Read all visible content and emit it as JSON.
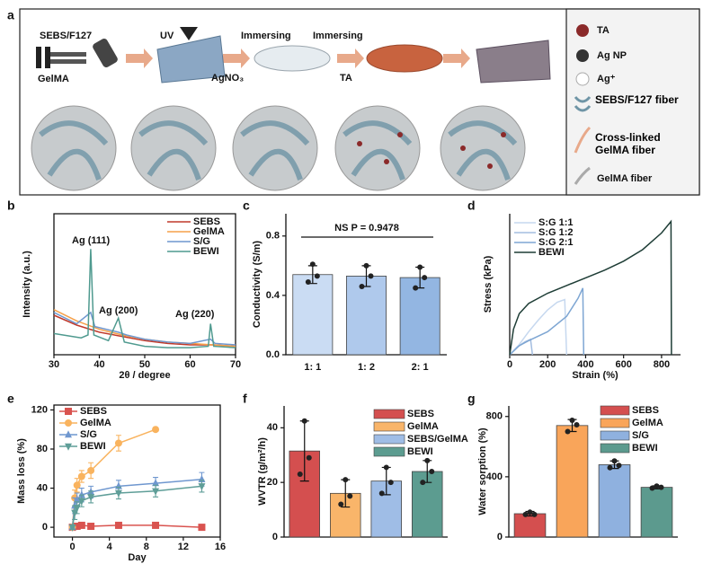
{
  "schematic": {
    "label": "a",
    "steps": [
      "SEBS/F127",
      "GelMA",
      "UV",
      "Immersing",
      "AgNO₃",
      "Immersing",
      "TA"
    ],
    "legend": [
      "TA",
      "Ag NP",
      "Ag⁺",
      "SEBS/F127 fiber",
      "Cross-linked GelMA fiber",
      "GelMA fiber"
    ]
  },
  "chart_data": [
    {
      "type": "line",
      "label": "b",
      "xlabel": "2θ / degree",
      "ylabel": "Intensity (a.u.)",
      "annotations": [
        "Ag (111)",
        "Ag (200)",
        "Ag (220)"
      ],
      "xlim": [
        30,
        70
      ],
      "xticks": [
        30,
        40,
        50,
        60,
        70
      ],
      "ylim": [
        0,
        100
      ],
      "series": [
        {
          "name": "SEBS",
          "color": "#c0392b",
          "x": [
            30,
            35,
            40,
            45,
            50,
            55,
            60,
            65,
            70
          ],
          "values": [
            28,
            21,
            16,
            13,
            10,
            8,
            7,
            7,
            6
          ]
        },
        {
          "name": "GelMA",
          "color": "#f5a04a",
          "x": [
            30,
            35,
            40,
            45,
            50,
            55,
            60,
            65,
            70
          ],
          "values": [
            32,
            24,
            18,
            14,
            11,
            9,
            8,
            7,
            6
          ]
        },
        {
          "name": "S/G",
          "color": "#6f97cf",
          "x": [
            30,
            35,
            38.1,
            39,
            44.2,
            46,
            50,
            55,
            60,
            64.5,
            65.5,
            70
          ],
          "values": [
            30,
            22,
            30,
            20,
            16,
            14,
            11,
            9,
            8,
            11,
            8,
            7
          ]
        },
        {
          "name": "BEWI",
          "color": "#4f9a8f",
          "x": [
            30,
            34,
            36,
            37.5,
            38.1,
            38.8,
            42,
            44.2,
            45.5,
            50,
            55,
            60,
            64,
            64.5,
            65.2,
            70
          ],
          "values": [
            15,
            13,
            12,
            14,
            75,
            14,
            10,
            26,
            9,
            6,
            5,
            5,
            6,
            22,
            6,
            5
          ]
        }
      ]
    },
    {
      "type": "bar",
      "label": "c",
      "ylabel": "Conductivity (S/m)",
      "annotation": "NS P = 0.9478",
      "categories": [
        "1: 1",
        "1: 2",
        "2: 1"
      ],
      "values": [
        0.54,
        0.53,
        0.52
      ],
      "errors": [
        0.06,
        0.07,
        0.07
      ],
      "points": [
        [
          0.49,
          0.61,
          0.53
        ],
        [
          0.46,
          0.6,
          0.53
        ],
        [
          0.45,
          0.59,
          0.52
        ]
      ],
      "colors": [
        "#cadcf3",
        "#afc9ec",
        "#93b6e2"
      ],
      "ylim": [
        0,
        0.95
      ],
      "yticks": [
        {
          "value": 0,
          "label": "0.0"
        },
        0.4,
        0.8
      ]
    },
    {
      "type": "line",
      "label": "d",
      "xlabel": "Strain (%)",
      "ylabel": "Stress (kPa)",
      "xlim": [
        0,
        900
      ],
      "xticks": [
        0,
        200,
        400,
        600,
        800
      ],
      "ylim": [
        0,
        1100
      ],
      "series": [
        {
          "name": "S:G 1:1",
          "color": "#c6d8ef",
          "x": [
            0,
            50,
            100,
            150,
            200,
            250,
            290,
            300
          ],
          "values": [
            0,
            80,
            180,
            270,
            350,
            410,
            430,
            0
          ]
        },
        {
          "name": "S:G 1:2",
          "color": "#a3bde0",
          "x": [
            0,
            40,
            80,
            110,
            120
          ],
          "values": [
            0,
            60,
            100,
            120,
            0
          ]
        },
        {
          "name": "S:G 2:1",
          "color": "#7ea6d3",
          "x": [
            0,
            50,
            100,
            200,
            300,
            360,
            385,
            390
          ],
          "values": [
            0,
            70,
            110,
            180,
            300,
            440,
            520,
            0
          ]
        },
        {
          "name": "BEWI",
          "color": "#1e3d36",
          "x": [
            0,
            20,
            50,
            100,
            200,
            300,
            400,
            500,
            600,
            700,
            800,
            850,
            852
          ],
          "values": [
            0,
            200,
            320,
            400,
            480,
            540,
            600,
            660,
            730,
            820,
            950,
            1040,
            0
          ]
        }
      ]
    },
    {
      "type": "line",
      "label": "e",
      "xlabel": "Day",
      "ylabel": "Mass loss (%)",
      "frame": true,
      "xlim": [
        -2,
        16
      ],
      "xticks": [
        0,
        4,
        8,
        12,
        16
      ],
      "ylim": [
        -10,
        125
      ],
      "yticks": [
        0,
        40,
        80,
        120
      ],
      "series": [
        {
          "name": "SEBS",
          "color": "#d9534f",
          "marker": "square",
          "x": [
            0,
            0.5,
            1,
            2,
            5,
            9,
            14
          ],
          "values": [
            0,
            1,
            2,
            1,
            2,
            2,
            0
          ],
          "errors": [
            1,
            1,
            1,
            1,
            1,
            1,
            1
          ]
        },
        {
          "name": "GelMA",
          "color": "#f9b35e",
          "marker": "circle",
          "x": [
            0,
            0.25,
            0.5,
            1,
            2,
            5,
            9
          ],
          "values": [
            0,
            30,
            43,
            52,
            58,
            86,
            100
          ],
          "errors": [
            2,
            8,
            7,
            6,
            8,
            8,
            2
          ]
        },
        {
          "name": "S/G",
          "color": "#6f97cf",
          "marker": "triangle-up",
          "x": [
            0,
            0.25,
            0.5,
            1,
            2,
            5,
            9,
            14
          ],
          "values": [
            0,
            22,
            28,
            33,
            36,
            42,
            45,
            49
          ],
          "errors": [
            2,
            8,
            7,
            7,
            6,
            6,
            6,
            7
          ]
        },
        {
          "name": "BEWI",
          "color": "#5f9e98",
          "marker": "triangle-down",
          "x": [
            0,
            0.25,
            0.5,
            1,
            2,
            5,
            9,
            14
          ],
          "values": [
            0,
            15,
            20,
            27,
            31,
            35,
            37,
            42
          ],
          "errors": [
            2,
            7,
            6,
            6,
            6,
            6,
            6,
            6
          ]
        }
      ]
    },
    {
      "type": "bar",
      "label": "f",
      "ylabel": "WVTR (g/m²/h)",
      "legend": true,
      "categories": [
        "SEBS",
        "GelMA",
        "SEBS/GelMA",
        "BEWI"
      ],
      "values": [
        31.5,
        16,
        20.5,
        24
      ],
      "errors": [
        11,
        5,
        5,
        4
      ],
      "points": [
        [
          23,
          42.5,
          29
        ],
        [
          12,
          21,
          15
        ],
        [
          16,
          25.5,
          20
        ],
        [
          20,
          28,
          24
        ]
      ],
      "colors": [
        "#d44f4f",
        "#f9b56a",
        "#9fbde6",
        "#5c9c90"
      ],
      "ylim": [
        0,
        48
      ],
      "yticks": [
        0,
        20,
        40
      ]
    },
    {
      "type": "bar",
      "label": "g",
      "ylabel": "Water sorption (%)",
      "legend": true,
      "categories": [
        "SEBS",
        "GelMA",
        "S/G",
        "BEWI"
      ],
      "values": [
        155,
        740,
        480,
        330
      ],
      "errors": [
        15,
        40,
        25,
        10
      ],
      "points": [
        [
          150,
          165,
          150
        ],
        [
          700,
          775,
          745
        ],
        [
          460,
          505,
          475
        ],
        [
          325,
          338,
          330
        ]
      ],
      "colors": [
        "#d44f4f",
        "#f9a55a",
        "#8fb1df",
        "#5c9a8e"
      ],
      "ylim": [
        0,
        870
      ],
      "yticks": [
        0,
        400,
        800
      ]
    }
  ]
}
